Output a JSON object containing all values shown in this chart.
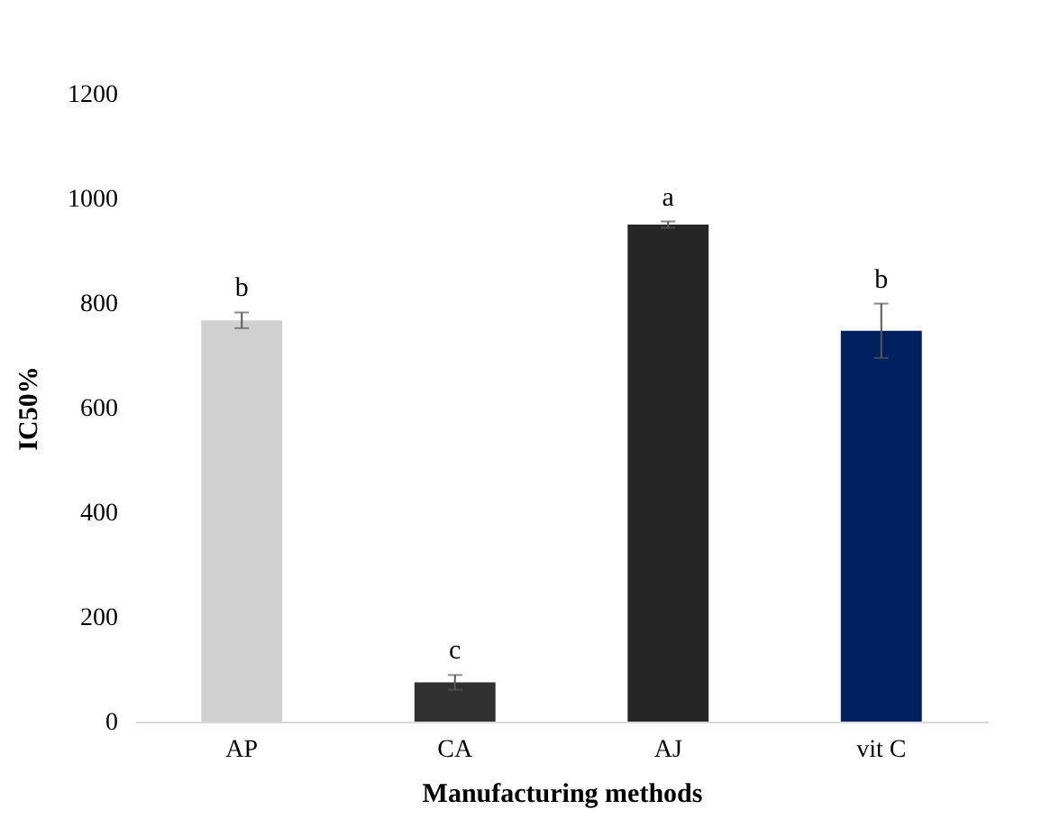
{
  "chart_data": {
    "type": "bar",
    "xlabel": "Manufacturing methods",
    "ylabel": "IC50%",
    "categories": [
      "AP",
      "CA",
      "AJ",
      "vit C"
    ],
    "values": [
      767,
      75,
      950,
      747
    ],
    "errors": [
      15,
      14,
      6,
      52
    ],
    "colors": [
      "#d0d0d0",
      "#303030",
      "#262626",
      "#002060"
    ],
    "ylim": [
      0,
      1200
    ],
    "yticks": [
      0,
      200,
      400,
      600,
      800,
      1000,
      1200
    ],
    "grid": false,
    "annotations": [
      "b",
      "c",
      "a",
      "b"
    ]
  }
}
